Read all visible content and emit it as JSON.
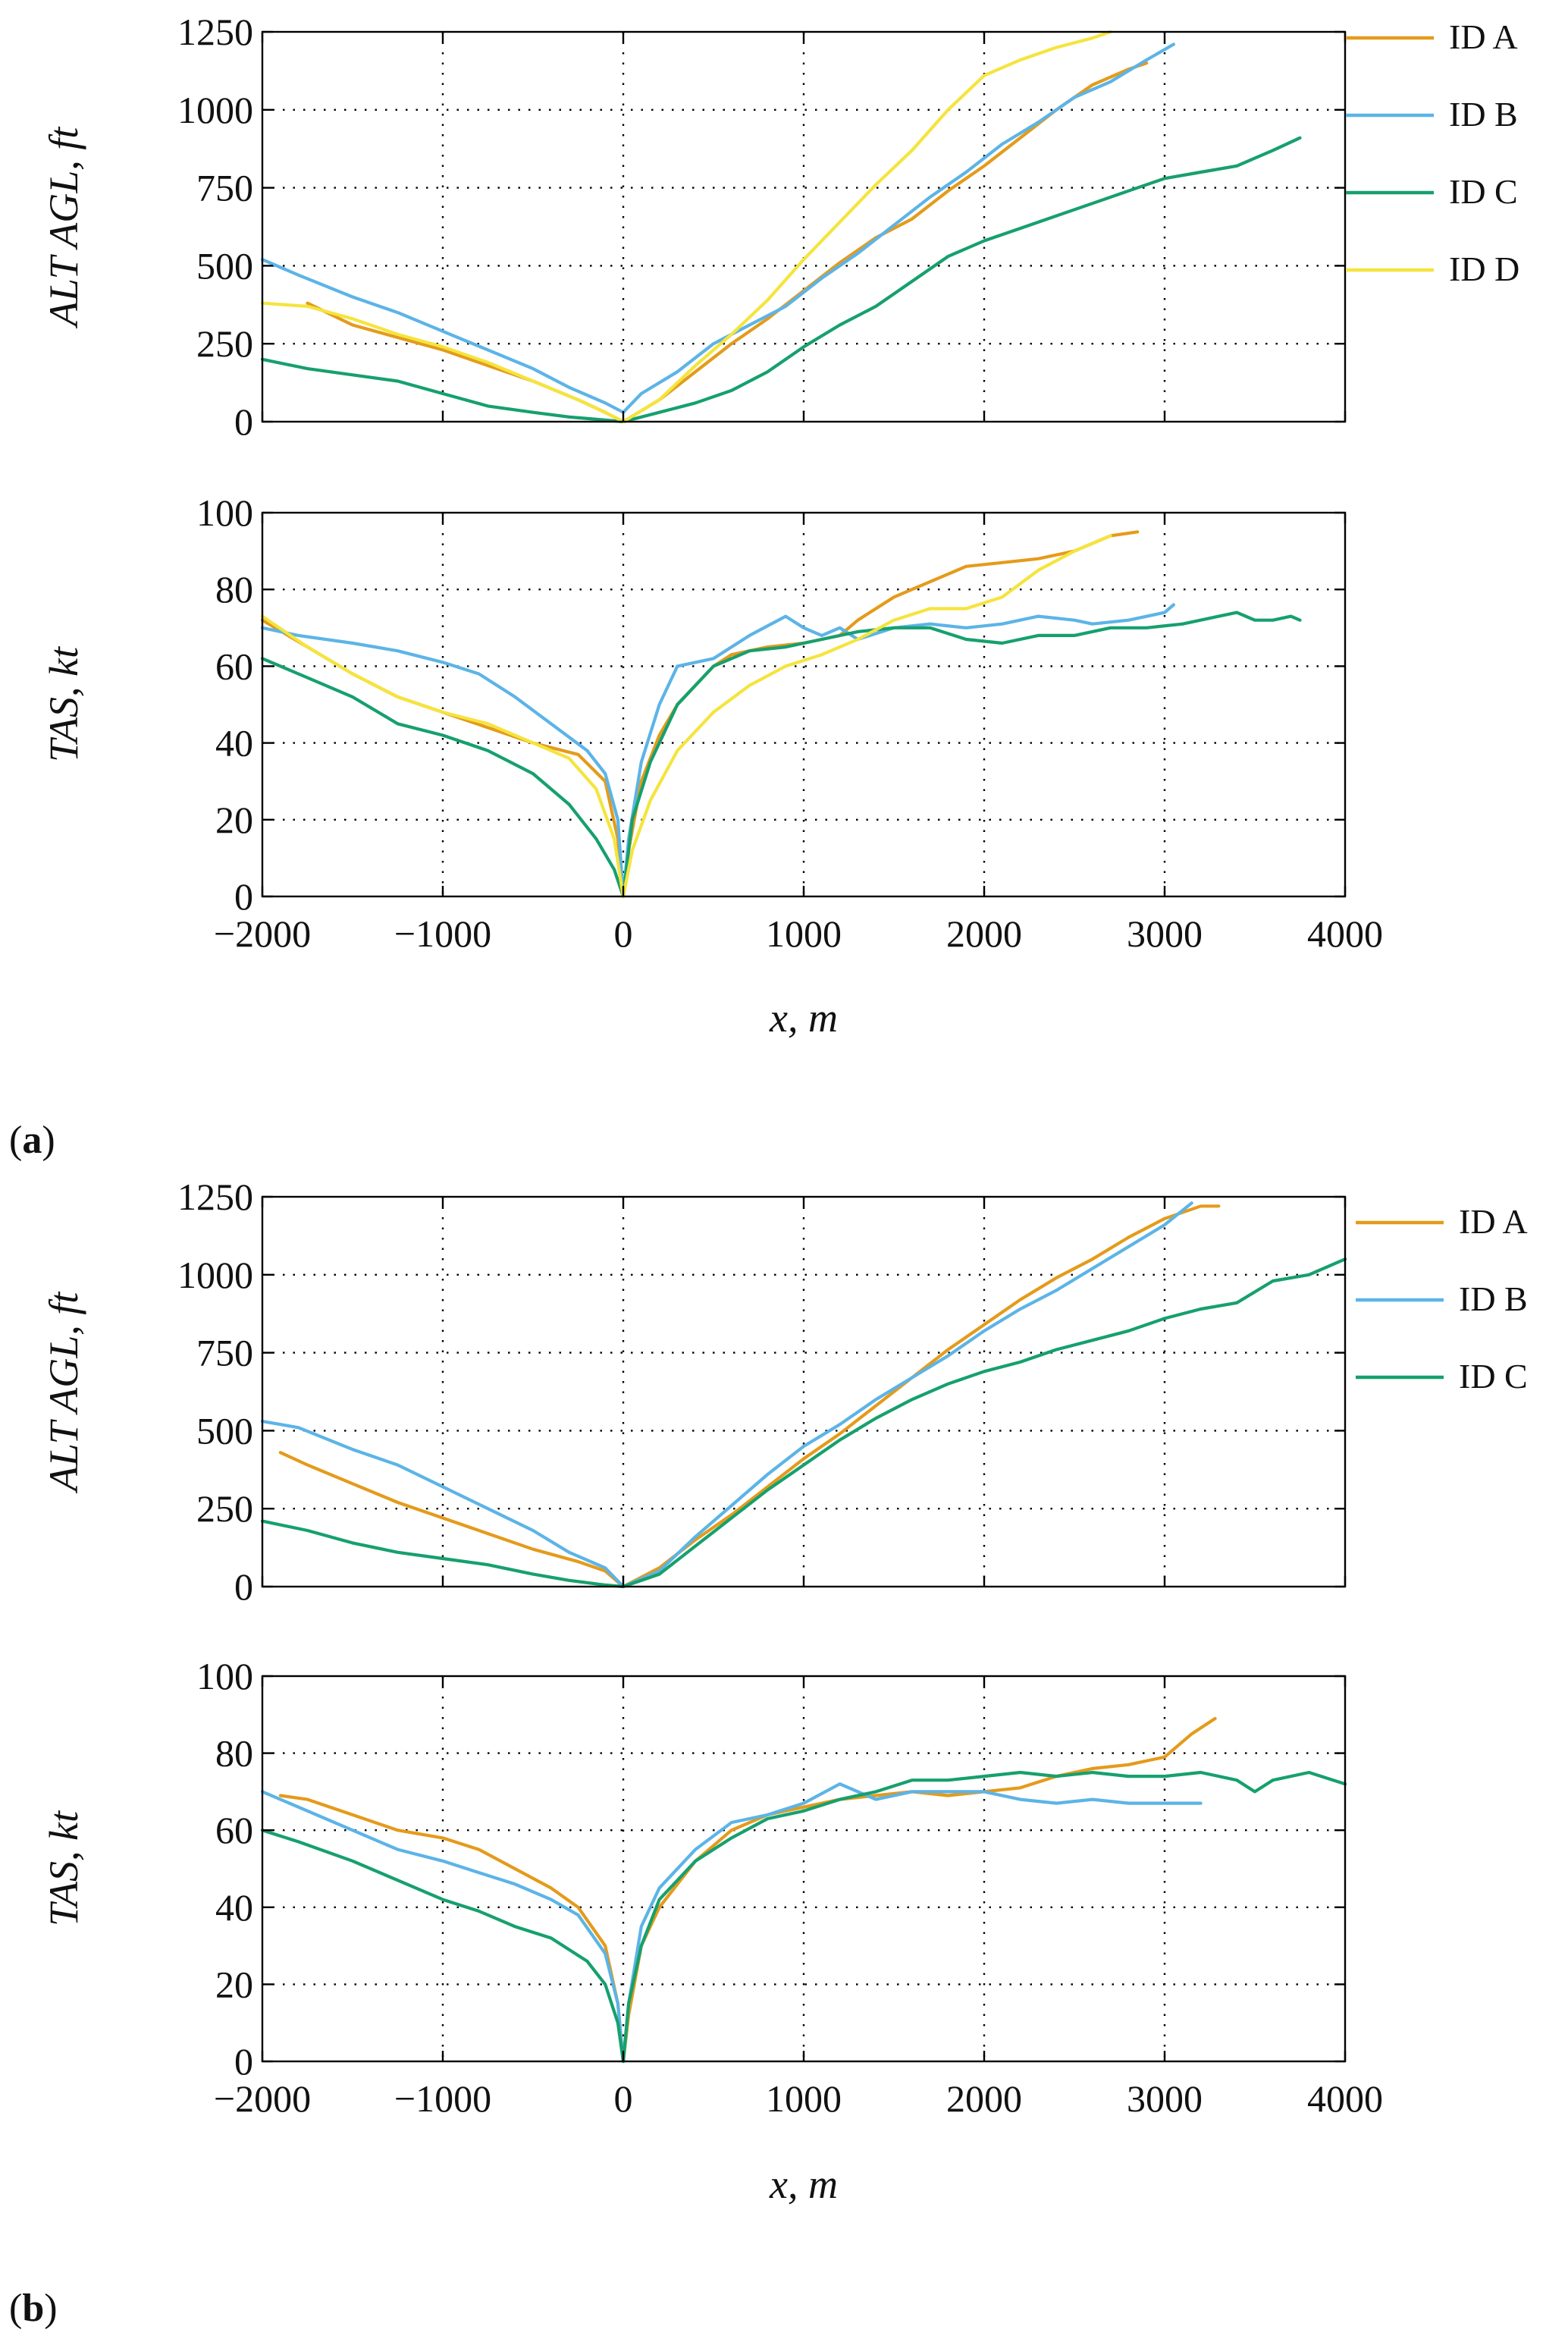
{
  "colors": {
    "ID A": "#E49B1B",
    "ID B": "#5CB4E6",
    "ID C": "#16A06E",
    "ID D": "#F5E43D"
  },
  "panels": [
    {
      "tag_bold": "a",
      "tag_open": "(",
      "tag_close": ")"
    },
    {
      "tag_bold": "b",
      "tag_open": "(",
      "tag_close": ")"
    }
  ],
  "chart_data": [
    {
      "type": "line",
      "panel": "a",
      "title": "",
      "xlabel": "x, m",
      "ylabel": "ALT AGL, ft",
      "xlim": [
        -2000,
        4000
      ],
      "ylim": [
        0,
        1250
      ],
      "xticks": [
        -2000,
        -1000,
        0,
        1000,
        2000,
        3000,
        4000
      ],
      "yticks": [
        0,
        250,
        500,
        750,
        1000,
        1250
      ],
      "ytick_labels": [
        "0",
        "250",
        "500",
        "750",
        "1000",
        "1250"
      ],
      "show_xticklabels": false,
      "grid": true,
      "legend": "right, outside",
      "series": [
        {
          "name": "ID A",
          "x": [
            -1750,
            -1500,
            -1250,
            -1000,
            -750,
            -500,
            -250,
            -100,
            0,
            200,
            400,
            600,
            800,
            1000,
            1200,
            1400,
            1600,
            1800,
            2000,
            2200,
            2400,
            2600,
            2800,
            2900
          ],
          "y": [
            380,
            310,
            270,
            230,
            180,
            130,
            70,
            30,
            0,
            70,
            160,
            250,
            330,
            420,
            510,
            590,
            650,
            740,
            820,
            910,
            1000,
            1080,
            1130,
            1150
          ]
        },
        {
          "name": "ID B",
          "x": [
            -2000,
            -1800,
            -1500,
            -1250,
            -1000,
            -750,
            -500,
            -300,
            -100,
            0,
            100,
            300,
            500,
            700,
            900,
            1100,
            1300,
            1500,
            1700,
            1900,
            2100,
            2300,
            2500,
            2700,
            2900,
            3050
          ],
          "y": [
            520,
            470,
            400,
            350,
            290,
            230,
            170,
            110,
            60,
            30,
            90,
            160,
            250,
            310,
            370,
            460,
            540,
            630,
            720,
            800,
            890,
            960,
            1040,
            1090,
            1160,
            1210
          ]
        },
        {
          "name": "ID C",
          "x": [
            -2000,
            -1750,
            -1500,
            -1250,
            -1000,
            -750,
            -500,
            -300,
            -100,
            0,
            200,
            400,
            600,
            800,
            1000,
            1200,
            1400,
            1600,
            1800,
            2000,
            2200,
            2400,
            2600,
            2800,
            3000,
            3200,
            3400,
            3600,
            3750
          ],
          "y": [
            200,
            170,
            150,
            130,
            90,
            50,
            30,
            15,
            5,
            0,
            30,
            60,
            100,
            160,
            240,
            310,
            370,
            450,
            530,
            580,
            620,
            660,
            700,
            740,
            780,
            800,
            820,
            870,
            910
          ]
        },
        {
          "name": "ID D",
          "x": [
            -2000,
            -1750,
            -1500,
            -1250,
            -1000,
            -750,
            -500,
            -250,
            -100,
            0,
            200,
            400,
            600,
            800,
            1000,
            1200,
            1400,
            1600,
            1800,
            2000,
            2200,
            2400,
            2600,
            2700
          ],
          "y": [
            380,
            370,
            330,
            280,
            240,
            190,
            130,
            70,
            30,
            0,
            70,
            180,
            280,
            390,
            520,
            640,
            760,
            870,
            1000,
            1110,
            1160,
            1200,
            1230,
            1250
          ]
        }
      ]
    },
    {
      "type": "line",
      "panel": "a",
      "title": "",
      "xlabel": "x, m",
      "ylabel": "TAS, kt",
      "xlim": [
        -2000,
        4000
      ],
      "ylim": [
        0,
        100
      ],
      "xticks": [
        -2000,
        -1000,
        0,
        1000,
        2000,
        3000,
        4000
      ],
      "xtick_labels": [
        "−2000",
        "−1000",
        "0",
        "1000",
        "2000",
        "3000",
        "4000"
      ],
      "yticks": [
        0,
        20,
        40,
        60,
        80,
        100
      ],
      "ytick_labels": [
        "0",
        "20",
        "40",
        "60",
        "80",
        "100"
      ],
      "show_xticklabels": true,
      "grid": true,
      "series": [
        {
          "name": "ID A",
          "x": [
            -2000,
            -1750,
            -1500,
            -1250,
            -1000,
            -750,
            -500,
            -250,
            -100,
            -30,
            0,
            30,
            100,
            200,
            300,
            400,
            500,
            600,
            800,
            1000,
            1200,
            1300,
            1500,
            1700,
            1900,
            2100,
            2300,
            2500,
            2700,
            2850
          ],
          "y": [
            72,
            65,
            58,
            52,
            48,
            44,
            40,
            37,
            30,
            15,
            0,
            12,
            30,
            42,
            50,
            55,
            60,
            63,
            65,
            66,
            68,
            72,
            78,
            82,
            86,
            87,
            88,
            90,
            94,
            95
          ]
        },
        {
          "name": "ID B",
          "x": [
            -2000,
            -1800,
            -1500,
            -1250,
            -1000,
            -800,
            -600,
            -400,
            -200,
            -100,
            -30,
            0,
            30,
            100,
            200,
            300,
            500,
            700,
            900,
            1000,
            1100,
            1200,
            1300,
            1500,
            1700,
            1900,
            2100,
            2300,
            2500,
            2600,
            2800,
            3000,
            3050
          ],
          "y": [
            70,
            68,
            66,
            64,
            61,
            58,
            52,
            45,
            38,
            32,
            20,
            0,
            15,
            35,
            50,
            60,
            62,
            68,
            73,
            70,
            68,
            70,
            67,
            70,
            71,
            70,
            71,
            73,
            72,
            71,
            72,
            74,
            76
          ]
        },
        {
          "name": "ID C",
          "x": [
            -2000,
            -1800,
            -1500,
            -1250,
            -1000,
            -750,
            -500,
            -300,
            -150,
            -50,
            0,
            50,
            150,
            300,
            500,
            700,
            900,
            1100,
            1300,
            1500,
            1700,
            1900,
            2100,
            2300,
            2500,
            2700,
            2900,
            3100,
            3300,
            3400,
            3500,
            3600,
            3700,
            3750
          ],
          "y": [
            62,
            58,
            52,
            45,
            42,
            38,
            32,
            24,
            15,
            7,
            0,
            20,
            35,
            50,
            60,
            64,
            65,
            67,
            69,
            70,
            70,
            67,
            66,
            68,
            68,
            70,
            70,
            71,
            73,
            74,
            72,
            72,
            73,
            72
          ]
        },
        {
          "name": "ID D",
          "x": [
            -2000,
            -1750,
            -1500,
            -1250,
            -1000,
            -750,
            -500,
            -300,
            -150,
            -50,
            0,
            50,
            150,
            300,
            500,
            700,
            900,
            1100,
            1300,
            1500,
            1700,
            1900,
            2100,
            2300,
            2500,
            2700
          ],
          "y": [
            73,
            65,
            58,
            52,
            48,
            45,
            40,
            36,
            28,
            15,
            0,
            12,
            25,
            38,
            48,
            55,
            60,
            63,
            67,
            72,
            75,
            75,
            78,
            85,
            90,
            94
          ]
        }
      ]
    },
    {
      "type": "line",
      "panel": "b",
      "title": "",
      "xlabel": "x, m",
      "ylabel": "ALT AGL, ft",
      "xlim": [
        -2000,
        4000
      ],
      "ylim": [
        0,
        1250
      ],
      "xticks": [
        -2000,
        -1000,
        0,
        1000,
        2000,
        3000,
        4000
      ],
      "yticks": [
        0,
        250,
        500,
        750,
        1000,
        1250
      ],
      "ytick_labels": [
        "0",
        "250",
        "500",
        "750",
        "1000",
        "1250"
      ],
      "show_xticklabels": false,
      "grid": true,
      "legend": "right, outside",
      "series": [
        {
          "name": "ID A",
          "x": [
            -1900,
            -1750,
            -1500,
            -1250,
            -1000,
            -750,
            -500,
            -250,
            -100,
            0,
            200,
            400,
            600,
            800,
            1000,
            1200,
            1400,
            1600,
            1800,
            2000,
            2200,
            2400,
            2600,
            2800,
            3000,
            3200,
            3300
          ],
          "y": [
            430,
            390,
            330,
            270,
            220,
            170,
            120,
            80,
            50,
            0,
            60,
            150,
            230,
            320,
            410,
            490,
            580,
            670,
            760,
            840,
            920,
            990,
            1050,
            1120,
            1180,
            1220,
            1220
          ]
        },
        {
          "name": "ID B",
          "x": [
            -2000,
            -1800,
            -1500,
            -1250,
            -1000,
            -750,
            -500,
            -300,
            -100,
            0,
            200,
            400,
            600,
            800,
            1000,
            1200,
            1400,
            1600,
            1800,
            2000,
            2200,
            2400,
            2600,
            2800,
            3000,
            3150
          ],
          "y": [
            530,
            510,
            440,
            390,
            320,
            250,
            180,
            110,
            60,
            0,
            50,
            160,
            260,
            360,
            450,
            520,
            600,
            670,
            740,
            820,
            890,
            950,
            1020,
            1090,
            1160,
            1230
          ]
        },
        {
          "name": "ID C",
          "x": [
            -2000,
            -1750,
            -1500,
            -1250,
            -1000,
            -750,
            -500,
            -300,
            -100,
            0,
            200,
            400,
            600,
            800,
            1000,
            1200,
            1400,
            1600,
            1800,
            2000,
            2200,
            2400,
            2600,
            2800,
            3000,
            3200,
            3400,
            3600,
            3800,
            4000
          ],
          "y": [
            210,
            180,
            140,
            110,
            90,
            70,
            40,
            20,
            5,
            0,
            40,
            130,
            220,
            310,
            390,
            470,
            540,
            600,
            650,
            690,
            720,
            760,
            790,
            820,
            860,
            890,
            910,
            980,
            1000,
            1050
          ]
        }
      ]
    },
    {
      "type": "line",
      "panel": "b",
      "title": "",
      "xlabel": "x, m",
      "ylabel": "TAS, kt",
      "xlim": [
        -2000,
        4000
      ],
      "ylim": [
        0,
        100
      ],
      "xticks": [
        -2000,
        -1000,
        0,
        1000,
        2000,
        3000,
        4000
      ],
      "xtick_labels": [
        "−2000",
        "−1000",
        "0",
        "1000",
        "2000",
        "3000",
        "4000"
      ],
      "yticks": [
        0,
        20,
        40,
        60,
        80,
        100
      ],
      "ytick_labels": [
        "0",
        "20",
        "40",
        "60",
        "80",
        "100"
      ],
      "show_xticklabels": true,
      "grid": true,
      "series": [
        {
          "name": "ID A",
          "x": [
            -1900,
            -1750,
            -1500,
            -1250,
            -1000,
            -800,
            -600,
            -400,
            -250,
            -100,
            -30,
            0,
            30,
            100,
            200,
            400,
            600,
            800,
            1000,
            1200,
            1400,
            1600,
            1800,
            2000,
            2200,
            2400,
            2600,
            2800,
            3000,
            3150,
            3280
          ],
          "y": [
            69,
            68,
            64,
            60,
            58,
            55,
            50,
            45,
            40,
            30,
            15,
            0,
            12,
            30,
            40,
            52,
            60,
            64,
            66,
            68,
            69,
            70,
            69,
            70,
            71,
            74,
            76,
            77,
            79,
            85,
            89
          ]
        },
        {
          "name": "ID B",
          "x": [
            -2000,
            -1800,
            -1500,
            -1250,
            -1000,
            -800,
            -600,
            -400,
            -250,
            -100,
            -30,
            0,
            30,
            100,
            200,
            400,
            600,
            800,
            1000,
            1200,
            1400,
            1600,
            1800,
            2000,
            2200,
            2400,
            2600,
            2800,
            3000,
            3200
          ],
          "y": [
            70,
            66,
            60,
            55,
            52,
            49,
            46,
            42,
            38,
            28,
            15,
            0,
            15,
            35,
            45,
            55,
            62,
            64,
            67,
            72,
            68,
            70,
            70,
            70,
            68,
            67,
            68,
            67,
            67,
            67
          ]
        },
        {
          "name": "ID C",
          "x": [
            -2000,
            -1800,
            -1500,
            -1250,
            -1000,
            -800,
            -600,
            -400,
            -200,
            -100,
            -30,
            0,
            30,
            100,
            200,
            400,
            600,
            800,
            1000,
            1200,
            1400,
            1600,
            1800,
            2000,
            2200,
            2400,
            2600,
            2800,
            3000,
            3200,
            3400,
            3500,
            3600,
            3800,
            4000
          ],
          "y": [
            60,
            57,
            52,
            47,
            42,
            39,
            35,
            32,
            26,
            20,
            10,
            0,
            15,
            30,
            42,
            52,
            58,
            63,
            65,
            68,
            70,
            73,
            73,
            74,
            75,
            74,
            75,
            74,
            74,
            75,
            73,
            70,
            73,
            75,
            72
          ]
        }
      ]
    }
  ]
}
